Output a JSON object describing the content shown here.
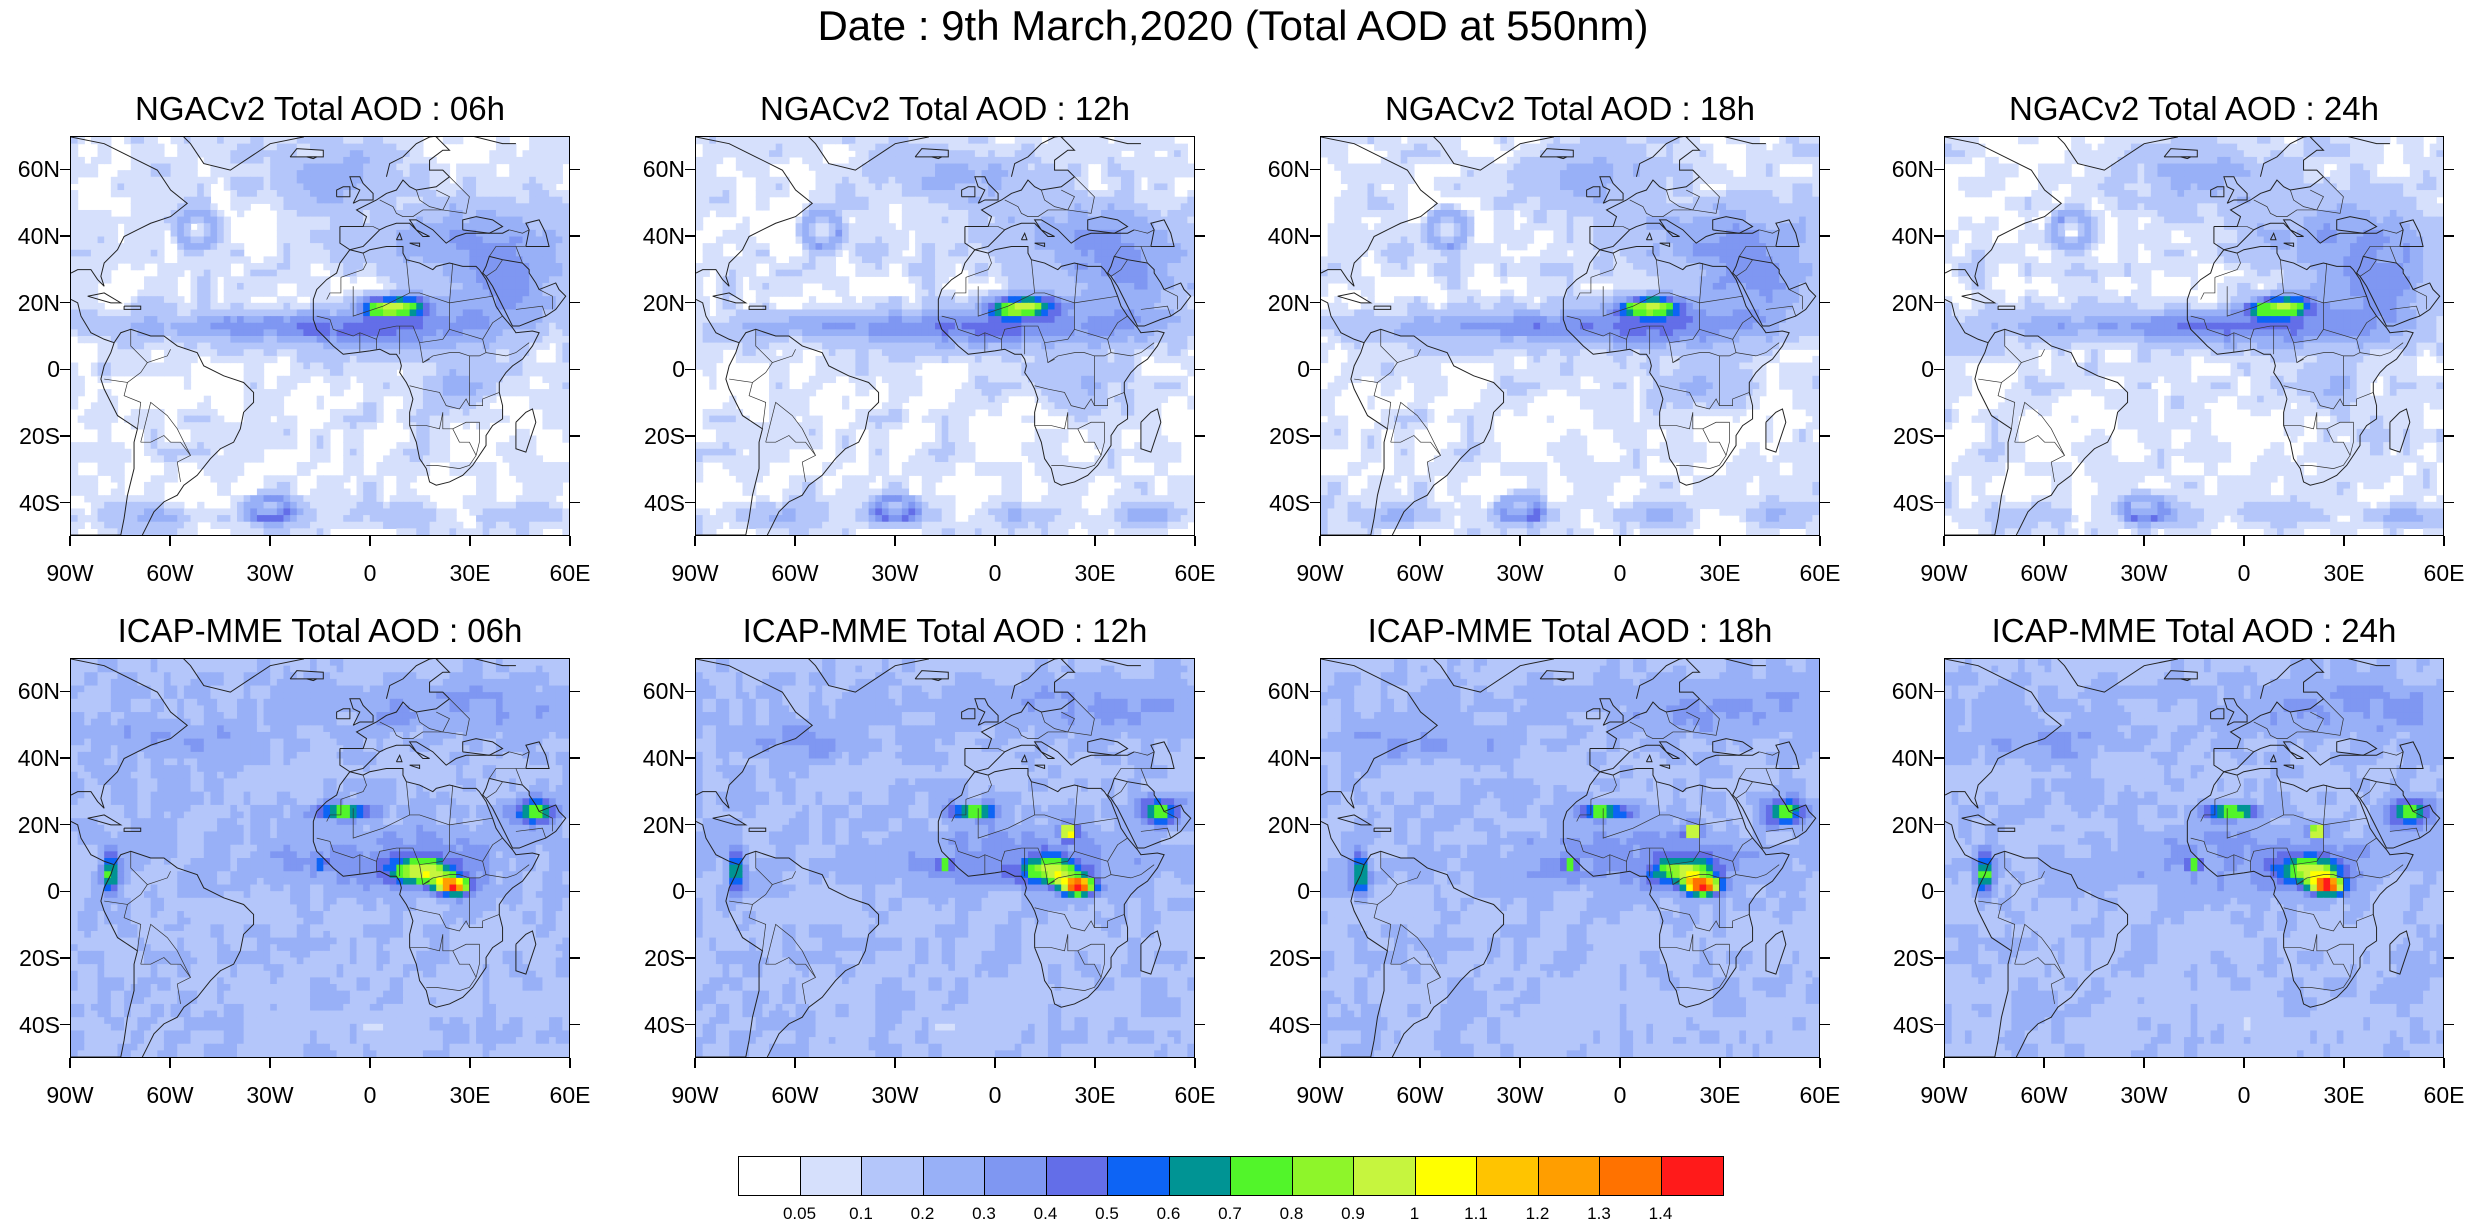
{
  "title": "Date : 9th March,2020 (Total AOD at 550nm)",
  "axes": {
    "lat_labels": [
      "60N",
      "40N",
      "20N",
      "0",
      "20S",
      "40S"
    ],
    "lon_labels": [
      "90W",
      "60W",
      "30W",
      "0",
      "30E",
      "60E"
    ],
    "lat_range": [
      -50,
      70
    ],
    "lon_range": [
      -90,
      60
    ]
  },
  "panels": [
    {
      "title": "NGACv2 Total AOD : 06h",
      "model": "NGACv2",
      "hour": 6
    },
    {
      "title": "NGACv2 Total AOD : 12h",
      "model": "NGACv2",
      "hour": 12
    },
    {
      "title": "NGACv2 Total AOD : 18h",
      "model": "NGACv2",
      "hour": 18
    },
    {
      "title": "NGACv2 Total AOD : 24h",
      "model": "NGACv2",
      "hour": 24
    },
    {
      "title": "ICAP-MME Total AOD : 06h",
      "model": "ICAP-MME",
      "hour": 6
    },
    {
      "title": "ICAP-MME Total AOD : 12h",
      "model": "ICAP-MME",
      "hour": 12
    },
    {
      "title": "ICAP-MME Total AOD : 18h",
      "model": "ICAP-MME",
      "hour": 18
    },
    {
      "title": "ICAP-MME Total AOD : 24h",
      "model": "ICAP-MME",
      "hour": 24
    }
  ],
  "colorbar": {
    "labels": [
      "0.05",
      "0.1",
      "0.2",
      "0.3",
      "0.4",
      "0.5",
      "0.6",
      "0.7",
      "0.8",
      "0.9",
      "1",
      "1.1",
      "1.2",
      "1.3",
      "1.4"
    ],
    "colors": [
      "#ffffff",
      "#d6e0fc",
      "#b4c6fa",
      "#98b0f7",
      "#7f97f2",
      "#636ee8",
      "#0d64f5",
      "#009494",
      "#52f52a",
      "#8ef52a",
      "#c6f53e",
      "#ffff00",
      "#ffc400",
      "#ff9e00",
      "#ff7200",
      "#ff1a1a"
    ]
  }
}
